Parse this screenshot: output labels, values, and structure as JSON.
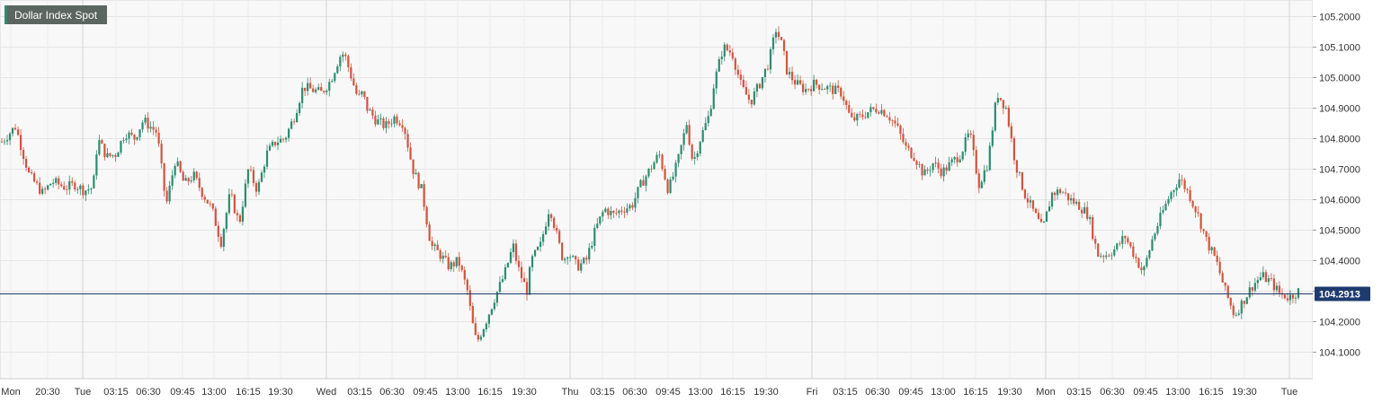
{
  "chart_data": {
    "type": "candlestick",
    "title": "Dollar Index Spot",
    "last_price": 104.2913,
    "ylim": [
      104.05,
      105.22
    ],
    "y_ticks": [
      "105.2000",
      "105.1000",
      "105.0000",
      "104.9000",
      "104.8000",
      "104.7000",
      "104.6000",
      "104.5000",
      "104.4000",
      "104.3000",
      "104.2000",
      "104.1000"
    ],
    "x_ticks": [
      "Mon",
      "20:30",
      "Tue",
      "03:15",
      "06:30",
      "09:45",
      "13:00",
      "16:15",
      "19:30",
      "Wed",
      "03:15",
      "06:30",
      "09:45",
      "13:00",
      "16:15",
      "19:30",
      "Thu",
      "03:15",
      "06:30",
      "09:45",
      "13:00",
      "16:15",
      "19:30",
      "Fri",
      "03:15",
      "06:30",
      "09:45",
      "13:00",
      "16:15",
      "19:30",
      "Mon",
      "03:15",
      "06:30",
      "09:45",
      "13:00",
      "16:15",
      "19:30",
      "Tue"
    ],
    "day_separators": [
      "Tue",
      "Wed",
      "Thu",
      "Fri",
      "Mon",
      "Tue"
    ],
    "grid": true,
    "colors": {
      "up": "#2e8b6f",
      "down": "#d2543f",
      "last_line": "#1f3b6e",
      "grid": "#e4e4e4",
      "plot_bg": "#f8f8f8",
      "title_bg": "#5c6660",
      "title_accent": "#2e8b6f"
    },
    "path_points": [
      [
        0,
        104.79
      ],
      [
        1.5,
        104.84
      ],
      [
        3,
        104.68
      ],
      [
        4.5,
        104.62
      ],
      [
        5.5,
        104.66
      ],
      [
        7,
        104.64
      ],
      [
        8,
        104.65
      ],
      [
        9,
        104.63
      ],
      [
        10,
        104.64
      ],
      [
        10.5,
        104.8
      ],
      [
        11.5,
        104.74
      ],
      [
        12.5,
        104.75
      ],
      [
        13.5,
        104.82
      ],
      [
        14.5,
        104.8
      ],
      [
        15.5,
        104.86
      ],
      [
        17,
        104.82
      ],
      [
        18,
        104.58
      ],
      [
        19,
        104.73
      ],
      [
        20,
        104.65
      ],
      [
        21,
        104.68
      ],
      [
        22,
        104.62
      ],
      [
        23,
        104.57
      ],
      [
        24,
        104.46
      ],
      [
        25,
        104.62
      ],
      [
        26,
        104.52
      ],
      [
        27,
        104.7
      ],
      [
        28,
        104.63
      ],
      [
        29,
        104.75
      ],
      [
        30,
        104.79
      ],
      [
        31,
        104.8
      ],
      [
        32,
        104.87
      ],
      [
        33,
        104.97
      ],
      [
        34,
        104.96
      ],
      [
        35,
        104.95
      ],
      [
        36,
        104.99
      ],
      [
        37,
        105.07
      ],
      [
        37.5,
        105.08
      ],
      [
        38,
        105.03
      ],
      [
        38.5,
        104.98
      ],
      [
        39,
        104.93
      ],
      [
        39.5,
        104.95
      ],
      [
        40,
        104.9
      ],
      [
        41,
        104.86
      ],
      [
        42,
        104.84
      ],
      [
        43,
        104.87
      ],
      [
        44,
        104.85
      ],
      [
        45,
        104.7
      ],
      [
        46,
        104.63
      ],
      [
        47,
        104.45
      ],
      [
        48,
        104.42
      ],
      [
        49,
        104.38
      ],
      [
        50,
        104.4
      ],
      [
        51,
        104.3
      ],
      [
        51.5,
        104.2
      ],
      [
        52,
        104.13
      ],
      [
        53,
        104.2
      ],
      [
        54,
        104.28
      ],
      [
        55,
        104.35
      ],
      [
        56,
        104.45
      ],
      [
        56.5,
        104.38
      ],
      [
        57.5,
        104.3
      ],
      [
        58,
        104.4
      ],
      [
        59,
        104.45
      ],
      [
        60,
        104.58
      ],
      [
        60.8,
        104.48
      ],
      [
        61.5,
        104.4
      ],
      [
        62,
        104.43
      ],
      [
        63,
        104.38
      ],
      [
        64,
        104.4
      ],
      [
        65,
        104.5
      ],
      [
        66,
        104.57
      ],
      [
        67,
        104.55
      ],
      [
        68,
        104.57
      ],
      [
        69,
        104.58
      ],
      [
        70,
        104.65
      ],
      [
        71,
        104.7
      ],
      [
        72,
        104.75
      ],
      [
        73,
        104.63
      ],
      [
        74,
        104.72
      ],
      [
        75,
        104.85
      ],
      [
        75.7,
        104.72
      ],
      [
        76.5,
        104.8
      ],
      [
        77.5,
        104.88
      ],
      [
        78,
        104.98
      ],
      [
        79,
        105.1
      ],
      [
        80,
        105.08
      ],
      [
        81,
        104.97
      ],
      [
        82,
        104.92
      ],
      [
        83,
        104.98
      ],
      [
        84,
        105.05
      ],
      [
        84.8,
        105.16
      ],
      [
        85.5,
        105.1
      ],
      [
        86,
        105.02
      ],
      [
        87,
        104.98
      ],
      [
        88,
        104.96
      ],
      [
        89,
        104.98
      ],
      [
        90,
        104.97
      ],
      [
        91,
        104.96
      ],
      [
        92,
        104.95
      ],
      [
        93,
        104.86
      ],
      [
        94,
        104.87
      ],
      [
        95,
        104.89
      ],
      [
        96,
        104.9
      ],
      [
        97,
        104.88
      ],
      [
        98,
        104.84
      ],
      [
        99,
        104.77
      ],
      [
        100,
        104.74
      ],
      [
        101,
        104.68
      ],
      [
        102,
        104.72
      ],
      [
        103,
        104.69
      ],
      [
        104,
        104.72
      ],
      [
        105,
        104.75
      ],
      [
        106,
        104.82
      ],
      [
        107,
        104.65
      ],
      [
        108,
        104.72
      ],
      [
        109,
        104.95
      ],
      [
        110,
        104.9
      ],
      [
        111,
        104.72
      ],
      [
        112,
        104.62
      ],
      [
        113,
        104.56
      ],
      [
        114,
        104.5
      ],
      [
        115,
        104.62
      ],
      [
        116,
        104.63
      ],
      [
        117,
        104.6
      ],
      [
        118,
        104.58
      ],
      [
        119,
        104.55
      ],
      [
        120,
        104.42
      ],
      [
        121,
        104.42
      ],
      [
        122,
        104.44
      ],
      [
        123,
        104.48
      ],
      [
        124,
        104.42
      ],
      [
        125,
        104.36
      ],
      [
        126,
        104.47
      ],
      [
        127,
        104.55
      ],
      [
        128,
        104.62
      ],
      [
        129,
        104.67
      ],
      [
        130,
        104.62
      ],
      [
        131,
        104.55
      ],
      [
        132,
        104.46
      ],
      [
        133,
        104.4
      ],
      [
        134,
        104.3
      ],
      [
        135,
        104.22
      ],
      [
        136,
        104.27
      ],
      [
        137,
        104.32
      ],
      [
        138,
        104.35
      ],
      [
        139,
        104.33
      ],
      [
        140,
        104.29
      ],
      [
        141,
        104.28
      ],
      [
        142,
        104.3
      ]
    ]
  }
}
